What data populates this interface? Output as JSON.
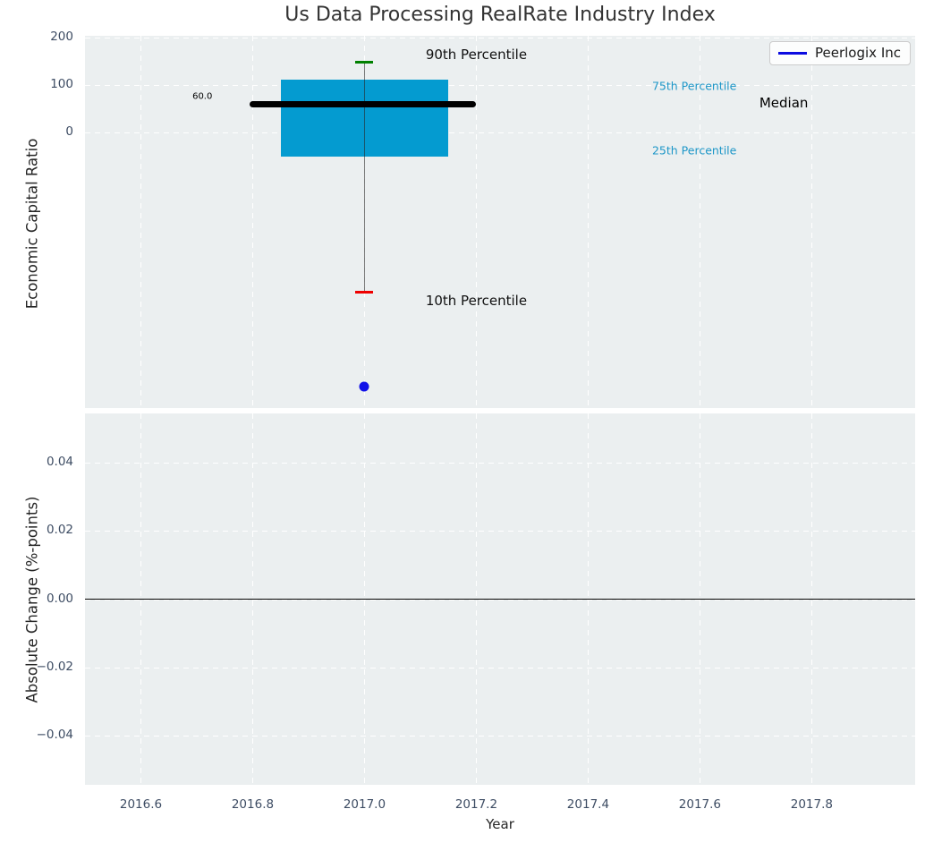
{
  "figure": {
    "title": "Us Data Processing RealRate Industry Index",
    "background": "#ffffff",
    "plot_background": "#ebeff0",
    "title_color": "#333333",
    "tick_color": "#3d4c63",
    "grid_color": "#ffffff"
  },
  "legend": {
    "label": "Peerlogix Inc",
    "line_color": "#0b0be0",
    "position": "top-right"
  },
  "axes_labels": {
    "top_y": "Economic Capital Ratio",
    "bottom_y": "Absolute Change (%-points)",
    "x": "Year"
  },
  "chart_data": [
    {
      "panel": "economic-capital-ratio",
      "type": "box",
      "title": "",
      "xlabel": "Year",
      "ylabel": "Economic Capital Ratio",
      "xlim": [
        2016.5,
        2017.985
      ],
      "ylim": [
        -581,
        204
      ],
      "grid": true,
      "x_tick_values": [
        2016.6,
        2016.8,
        2017.0,
        2017.2,
        2017.4,
        2017.6,
        2017.8
      ],
      "x_tick_labels": [
        "2016.6",
        "2016.8",
        "2017.0",
        "2017.2",
        "2017.4",
        "2017.6",
        "2017.8"
      ],
      "y_tick_values": [
        200,
        100,
        0
      ],
      "y_tick_labels": [
        "200",
        "100",
        "0"
      ],
      "legend_position": "upper right",
      "box": {
        "x_center": 2017.0,
        "p90": 148,
        "p75": 111,
        "median": 60.0,
        "p25": -50,
        "p10": -337,
        "box_x_range": [
          2016.85,
          2017.15
        ],
        "median_x_range": [
          2016.795,
          2017.2
        ],
        "cap_x_range": [
          2016.983,
          2017.016
        ],
        "box_color": "#049bd0",
        "median_color": "#000000",
        "whisker_color": "rgba(40,40,40,0.6)",
        "p90_cap_color": "#008000",
        "p10_cap_color": "#ee0000"
      },
      "points": [
        {
          "series": "Peerlogix Inc",
          "x": 2017.0,
          "y": -535,
          "color": "#1010e8",
          "diameter": 11
        }
      ],
      "annotations": [
        {
          "text": "60.0",
          "x": 2016.71,
          "y": 76,
          "color": "#000000",
          "size": 10
        },
        {
          "text": "90th Percentile",
          "x": 2017.2,
          "y": 165,
          "color": "#111111",
          "size": 15
        },
        {
          "text": "10th Percentile",
          "x": 2017.2,
          "y": -354,
          "color": "#111111",
          "size": 15
        },
        {
          "text": "75th Percentile",
          "x": 2017.59,
          "y": 99,
          "color": "#1e97c8",
          "size": 12.5
        },
        {
          "text": "25th Percentile",
          "x": 2017.59,
          "y": -37,
          "color": "#1e97c8",
          "size": 12.5
        },
        {
          "text": "Median",
          "x": 2017.75,
          "y": 63,
          "color": "#000000",
          "size": 15
        }
      ]
    },
    {
      "panel": "absolute-change",
      "type": "line",
      "title": "",
      "xlabel": "Year",
      "ylabel": "Absolute Change (%-points)",
      "xlim": [
        2016.5,
        2017.985
      ],
      "ylim": [
        -0.0546,
        0.0546
      ],
      "grid": true,
      "x_tick_values": [
        2016.6,
        2016.8,
        2017.0,
        2017.2,
        2017.4,
        2017.6,
        2017.8
      ],
      "x_tick_labels": [
        "2016.6",
        "2016.8",
        "2017.0",
        "2017.2",
        "2017.4",
        "2017.6",
        "2017.8"
      ],
      "y_tick_values": [
        0.04,
        0.02,
        0.0,
        -0.02,
        -0.04
      ],
      "y_tick_labels": [
        "0.04",
        "0.02",
        "0.00",
        "−0.02",
        "−0.04"
      ],
      "zero_line": {
        "y": 0.0,
        "color": "#000000"
      },
      "series": []
    }
  ]
}
